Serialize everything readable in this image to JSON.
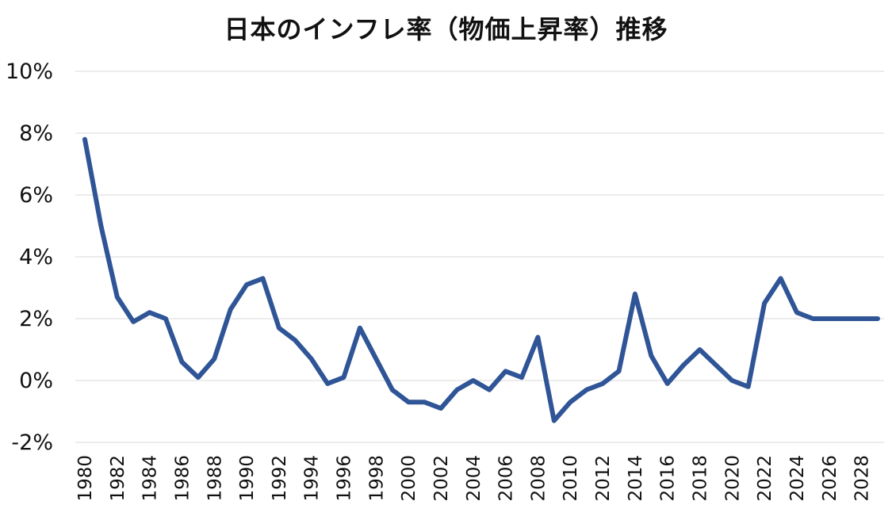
{
  "chart_data": {
    "type": "line",
    "title": "日本のインフレ率（物価上昇率）推移",
    "xlabel": "",
    "ylabel": "",
    "ylim": [
      -2,
      10
    ],
    "y_ticks": [
      "10%",
      "8%",
      "6%",
      "4%",
      "2%",
      "0%",
      "-2%"
    ],
    "y_tick_values": [
      10,
      8,
      6,
      4,
      2,
      0,
      -2
    ],
    "x_tick_labels": [
      "1980",
      "1982",
      "1984",
      "1986",
      "1988",
      "1990",
      "1992",
      "1994",
      "1996",
      "1998",
      "2000",
      "2002",
      "2004",
      "2006",
      "2008",
      "2010",
      "2012",
      "2014",
      "2016",
      "2018",
      "2020",
      "2022",
      "2024",
      "2026",
      "2028"
    ],
    "grid": true,
    "series": [
      {
        "color": "#2f5597",
        "x": [
          1980,
          1981,
          1982,
          1983,
          1984,
          1985,
          1986,
          1987,
          1988,
          1989,
          1990,
          1991,
          1992,
          1993,
          1994,
          1995,
          1996,
          1997,
          1998,
          1999,
          2000,
          2001,
          2002,
          2003,
          2004,
          2005,
          2006,
          2007,
          2008,
          2009,
          2010,
          2011,
          2012,
          2013,
          2014,
          2015,
          2016,
          2017,
          2018,
          2019,
          2020,
          2021,
          2022,
          2023,
          2024,
          2025,
          2026,
          2027,
          2028,
          2029
        ],
        "values": [
          7.8,
          5.0,
          2.7,
          1.9,
          2.2,
          2.0,
          0.6,
          0.1,
          0.7,
          2.3,
          3.1,
          3.3,
          1.7,
          1.3,
          0.7,
          -0.1,
          0.1,
          1.7,
          0.7,
          -0.3,
          -0.7,
          -0.7,
          -0.9,
          -0.3,
          0.0,
          -0.3,
          0.3,
          0.1,
          1.4,
          -1.3,
          -0.7,
          -0.3,
          -0.1,
          0.3,
          2.8,
          0.8,
          -0.1,
          0.5,
          1.0,
          0.5,
          0.0,
          -0.2,
          2.5,
          3.3,
          2.2,
          2.0,
          2.0,
          2.0,
          2.0,
          2.0
        ]
      }
    ]
  }
}
